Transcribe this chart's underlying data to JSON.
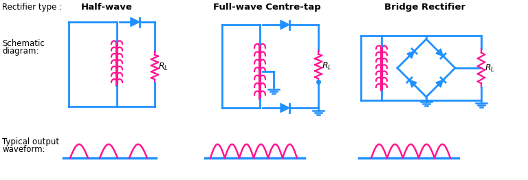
{
  "bg_color": "#ffffff",
  "circuit_color": "#1E90FF",
  "coil_color": "#FF1493",
  "wave_color": "#FF1493",
  "baseline_color": "#1E90FF",
  "text_color": "#000000",
  "col1_title": "Half-wave",
  "col2_title": "Full-wave Centre-tap",
  "col3_title": "Bridge Rectifier",
  "row1_label": "Rectifier type :",
  "row2_label_1": "Schematic",
  "row2_label_2": "diagram:",
  "row3_label_1": "Typical output",
  "row3_label_2": "waveform:"
}
